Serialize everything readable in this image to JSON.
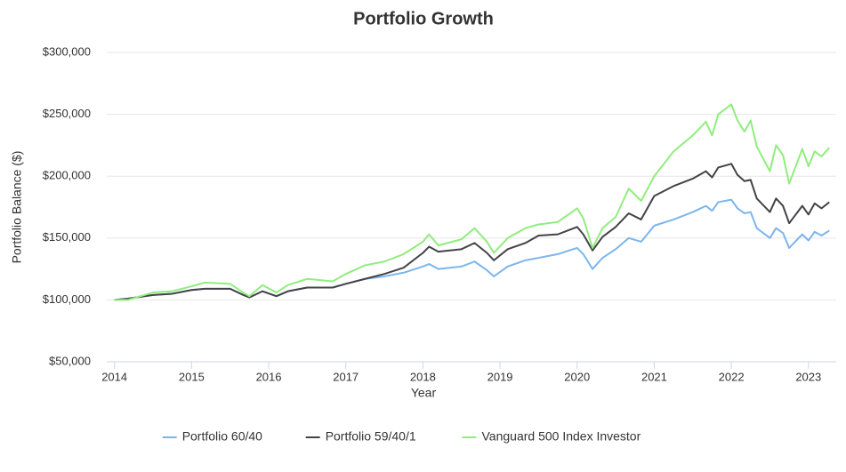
{
  "chart_data": {
    "type": "line",
    "title": "Portfolio Growth",
    "x_label": "Year",
    "y_label": "Portfolio Balance ($)",
    "x": [
      2014.0,
      2014.17,
      2014.5,
      2014.75,
      2015.0,
      2015.17,
      2015.5,
      2015.67,
      2015.75,
      2015.92,
      2016.1,
      2016.25,
      2016.5,
      2016.83,
      2017.0,
      2017.25,
      2017.5,
      2017.75,
      2018.0,
      2018.08,
      2018.2,
      2018.5,
      2018.67,
      2018.83,
      2018.92,
      2019.1,
      2019.33,
      2019.5,
      2019.75,
      2020.0,
      2020.08,
      2020.2,
      2020.33,
      2020.5,
      2020.67,
      2020.83,
      2021.0,
      2021.25,
      2021.5,
      2021.67,
      2021.75,
      2021.83,
      2022.0,
      2022.08,
      2022.17,
      2022.25,
      2022.33,
      2022.5,
      2022.58,
      2022.67,
      2022.75,
      2022.92,
      2023.0,
      2023.08,
      2023.17,
      2023.27
    ],
    "series": [
      {
        "name": "Portfolio 60/40",
        "color": "#7cb5ec",
        "values": [
          100000,
          101000,
          104000,
          105000,
          108000,
          109000,
          109000,
          104000,
          102000,
          107000,
          103000,
          107000,
          110000,
          110000,
          113000,
          117000,
          119000,
          122000,
          127000,
          129000,
          125000,
          127000,
          131000,
          124000,
          119000,
          127000,
          132000,
          134000,
          137000,
          142000,
          137000,
          125000,
          134000,
          141000,
          150000,
          147000,
          160000,
          165000,
          171000,
          176000,
          172000,
          179000,
          181000,
          174000,
          170000,
          171000,
          158000,
          150000,
          158000,
          154000,
          142000,
          153000,
          148000,
          155000,
          152000,
          156000
        ]
      },
      {
        "name": "Portfolio 59/40/1",
        "color": "#434348",
        "values": [
          100000,
          101000,
          104000,
          105000,
          108000,
          109000,
          109000,
          104000,
          102000,
          107000,
          103000,
          107000,
          110000,
          110000,
          113000,
          117000,
          121000,
          126000,
          138000,
          143000,
          139000,
          141000,
          146000,
          138000,
          132000,
          141000,
          146000,
          152000,
          153000,
          159000,
          153000,
          140000,
          151000,
          159000,
          170000,
          165000,
          184000,
          192000,
          198000,
          204000,
          199000,
          207000,
          210000,
          201000,
          196000,
          197000,
          182000,
          171000,
          182000,
          176000,
          162000,
          176000,
          169000,
          178000,
          174000,
          179000
        ]
      },
      {
        "name": "Vanguard 500 Index Investor",
        "color": "#90ed7d",
        "values": [
          100000,
          100000,
          106000,
          107000,
          111000,
          114000,
          113000,
          106000,
          103000,
          112000,
          106000,
          112000,
          117000,
          115000,
          121000,
          128000,
          131000,
          137000,
          147000,
          153000,
          144000,
          149000,
          158000,
          147000,
          138000,
          150000,
          158000,
          161000,
          163000,
          174000,
          166000,
          142000,
          158000,
          167000,
          190000,
          180000,
          200000,
          220000,
          233000,
          244000,
          233000,
          250000,
          258000,
          245000,
          236000,
          245000,
          224000,
          204000,
          225000,
          217000,
          194000,
          222000,
          208000,
          220000,
          216000,
          223000
        ]
      }
    ],
    "xlim": [
      2013.9,
      2023.36
    ],
    "xticks": [
      2014,
      2015,
      2016,
      2017,
      2018,
      2019,
      2020,
      2021,
      2022,
      2023
    ],
    "ylim": [
      50000,
      300000
    ],
    "yticks": [
      {
        "value": 50000,
        "label": "$50,000"
      },
      {
        "value": 100000,
        "label": "$100,000"
      },
      {
        "value": 150000,
        "label": "$150,000"
      },
      {
        "value": 200000,
        "label": "$200,000"
      },
      {
        "value": 250000,
        "label": "$250,000"
      },
      {
        "value": 300000,
        "label": "$300,000"
      }
    ],
    "grid": true,
    "legend": "bottom"
  }
}
